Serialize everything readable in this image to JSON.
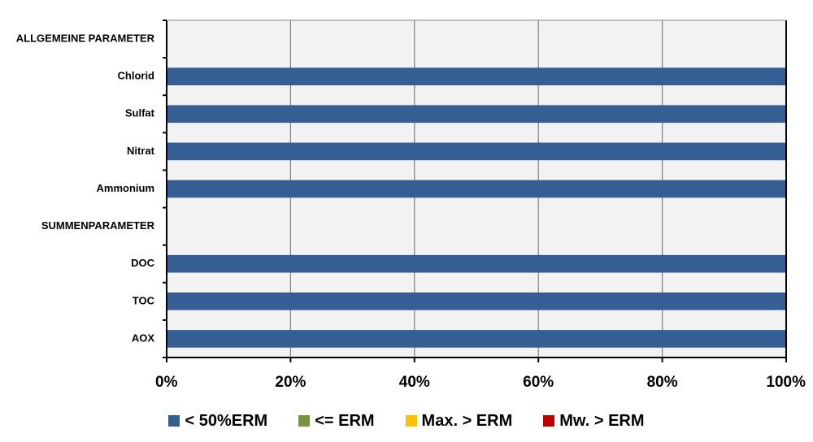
{
  "chart_data": {
    "type": "bar",
    "orientation": "horizontal",
    "stacked": true,
    "categories": [
      "ALLGEMEINE PARAMETER",
      "Chlorid",
      "Sulfat",
      "Nitrat",
      "Ammonium",
      "SUMMENPARAMETER",
      "DOC",
      "TOC",
      "AOX"
    ],
    "series": [
      {
        "name": "< 50%ERM",
        "color": "#355E94",
        "values": [
          0,
          100,
          100,
          100,
          100,
          0,
          100,
          100,
          100
        ]
      },
      {
        "name": "<= ERM",
        "color": "#77933C",
        "values": [
          0,
          0,
          0,
          0,
          0,
          0,
          0,
          0,
          0
        ]
      },
      {
        "name": "Max. > ERM",
        "color": "#FFC000",
        "values": [
          0,
          0,
          0,
          0,
          0,
          0,
          0,
          0,
          0
        ]
      },
      {
        "name": "Mw. > ERM",
        "color": "#C00000",
        "values": [
          0,
          0,
          0,
          0,
          0,
          0,
          0,
          0,
          0
        ]
      }
    ],
    "xlim": [
      0,
      100
    ],
    "xticks": [
      "0%",
      "20%",
      "40%",
      "60%",
      "80%",
      "100%"
    ],
    "grid": true,
    "legend_position": "bottom",
    "title": "",
    "xlabel": "",
    "ylabel": ""
  }
}
